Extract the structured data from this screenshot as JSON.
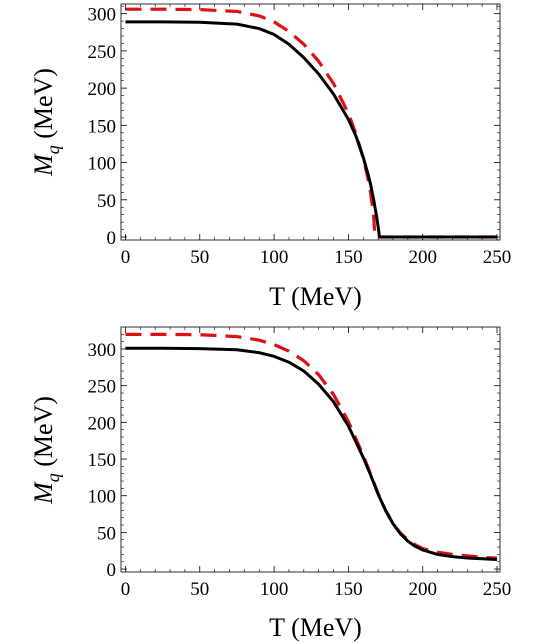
{
  "chart_data": [
    {
      "type": "line",
      "xlabel": "T (MeV)",
      "ylabel": {
        "main": "M",
        "sub": "q",
        "rest": " (MeV)"
      },
      "xlim": [
        -3,
        252
      ],
      "ylim": [
        -4,
        313
      ],
      "xticks": [
        0,
        50,
        100,
        150,
        200,
        250
      ],
      "yticks": [
        0,
        50,
        100,
        150,
        200,
        250,
        300
      ],
      "grid": false,
      "series": [
        {
          "color": "#000000",
          "style": "solid",
          "x": [
            0,
            25,
            50,
            75,
            90,
            100,
            110,
            120,
            130,
            140,
            150,
            155,
            160,
            163,
            165,
            167,
            169,
            170,
            170.8,
            171,
            172,
            180,
            200,
            250
          ],
          "y": [
            289,
            289,
            288.5,
            286,
            280,
            272,
            259,
            241,
            219,
            192,
            158,
            136,
            107,
            86,
            70,
            50,
            27,
            14,
            2,
            0,
            0,
            0,
            0,
            0
          ]
        },
        {
          "color": "#dd1111",
          "style": "dashed",
          "x": [
            0,
            25,
            50,
            75,
            90,
            100,
            110,
            120,
            130,
            140,
            150,
            155,
            160,
            163,
            165,
            166,
            167,
            167.5,
            168,
            180,
            200,
            250
          ],
          "y": [
            306,
            306,
            305.5,
            303,
            297,
            289,
            276,
            259,
            236,
            206,
            166,
            139,
            106,
            80,
            58,
            44,
            27,
            12,
            0,
            0,
            0,
            0
          ]
        }
      ]
    },
    {
      "type": "line",
      "xlabel": "T (MeV)",
      "ylabel": {
        "main": "M",
        "sub": "q",
        "rest": " (MeV)"
      },
      "xlim": [
        -3,
        252
      ],
      "ylim": [
        -4,
        330
      ],
      "xticks": [
        0,
        50,
        100,
        150,
        200,
        250
      ],
      "yticks": [
        0,
        50,
        100,
        150,
        200,
        250,
        300
      ],
      "grid": false,
      "series": [
        {
          "color": "#000000",
          "style": "solid",
          "x": [
            0,
            25,
            50,
            75,
            90,
            100,
            110,
            120,
            130,
            140,
            150,
            160,
            165,
            170,
            175,
            180,
            185,
            190,
            195,
            200,
            210,
            220,
            230,
            240,
            250
          ],
          "y": [
            301,
            301,
            300.5,
            299,
            295,
            290,
            282,
            270,
            252,
            228,
            195,
            152,
            128,
            102,
            80,
            62,
            48,
            38,
            31,
            26,
            20,
            17,
            15,
            14,
            13
          ]
        },
        {
          "color": "#dd1111",
          "style": "dashed",
          "x": [
            0,
            25,
            50,
            75,
            90,
            100,
            110,
            120,
            130,
            140,
            150,
            160,
            165,
            170,
            175,
            180,
            185,
            190,
            195,
            200,
            210,
            220,
            230,
            240,
            250
          ],
          "y": [
            320,
            320,
            319.5,
            317,
            312,
            306,
            297,
            284,
            265,
            238,
            201,
            155,
            129,
            103,
            80,
            62,
            49,
            40,
            33,
            28,
            23,
            20,
            18,
            16,
            15
          ]
        }
      ]
    }
  ]
}
